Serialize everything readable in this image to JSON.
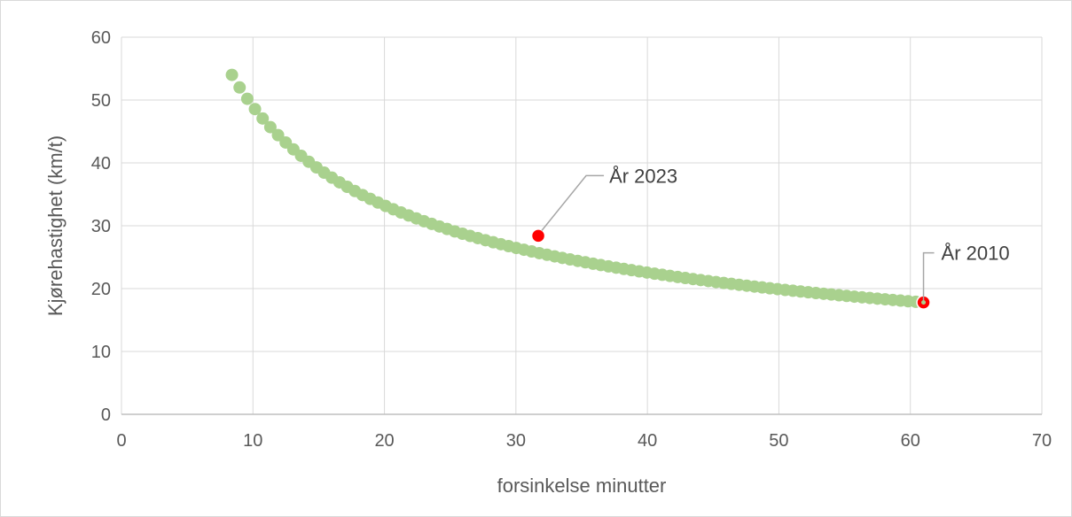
{
  "chart_data": {
    "type": "scatter",
    "title": "",
    "xlabel": "forsinkelse minutter",
    "ylabel": "Kjørehastighet (km/t)",
    "xlim": [
      0,
      70
    ],
    "ylim": [
      0,
      60
    ],
    "x_ticks": [
      0,
      10,
      20,
      30,
      40,
      50,
      60,
      70
    ],
    "y_ticks": [
      0,
      10,
      20,
      30,
      40,
      50,
      60
    ],
    "grid": true,
    "legend": "none",
    "series": [
      {
        "color": "#a9d18e",
        "curve": {
          "x_start": 8.4,
          "x_end": 61.0,
          "y_start": 54.0,
          "y_end": 17.8
        },
        "points": [
          {
            "x": 8.4,
            "y": 54.0
          },
          {
            "x": 10,
            "y": 51.5
          },
          {
            "x": 12,
            "y": 48.4
          },
          {
            "x": 14,
            "y": 45.5
          },
          {
            "x": 16,
            "y": 42.8
          },
          {
            "x": 18,
            "y": 40.3
          },
          {
            "x": 20,
            "y": 37.9
          },
          {
            "x": 22,
            "y": 35.7
          },
          {
            "x": 24,
            "y": 33.7
          },
          {
            "x": 26,
            "y": 31.8
          },
          {
            "x": 28,
            "y": 30.1
          },
          {
            "x": 30,
            "y": 29.0
          },
          {
            "x": 32,
            "y": 28.2
          },
          {
            "x": 34,
            "y": 26.9
          },
          {
            "x": 36,
            "y": 25.8
          },
          {
            "x": 38,
            "y": 24.8
          },
          {
            "x": 40,
            "y": 23.9
          },
          {
            "x": 42,
            "y": 23.0
          },
          {
            "x": 44,
            "y": 22.2
          },
          {
            "x": 46,
            "y": 21.5
          },
          {
            "x": 48,
            "y": 20.8
          },
          {
            "x": 50,
            "y": 20.3
          },
          {
            "x": 52,
            "y": 19.8
          },
          {
            "x": 54,
            "y": 19.3
          },
          {
            "x": 56,
            "y": 18.9
          },
          {
            "x": 58,
            "y": 18.5
          },
          {
            "x": 60,
            "y": 18.0
          },
          {
            "x": 61.0,
            "y": 17.8
          }
        ]
      }
    ],
    "annotations": [
      {
        "label": "År 2023",
        "x": 31.7,
        "y": 28.4,
        "marker_color": "#ff0000"
      },
      {
        "label": "År 2010",
        "x": 61.0,
        "y": 17.8,
        "marker_color": "#ff0000"
      }
    ]
  }
}
